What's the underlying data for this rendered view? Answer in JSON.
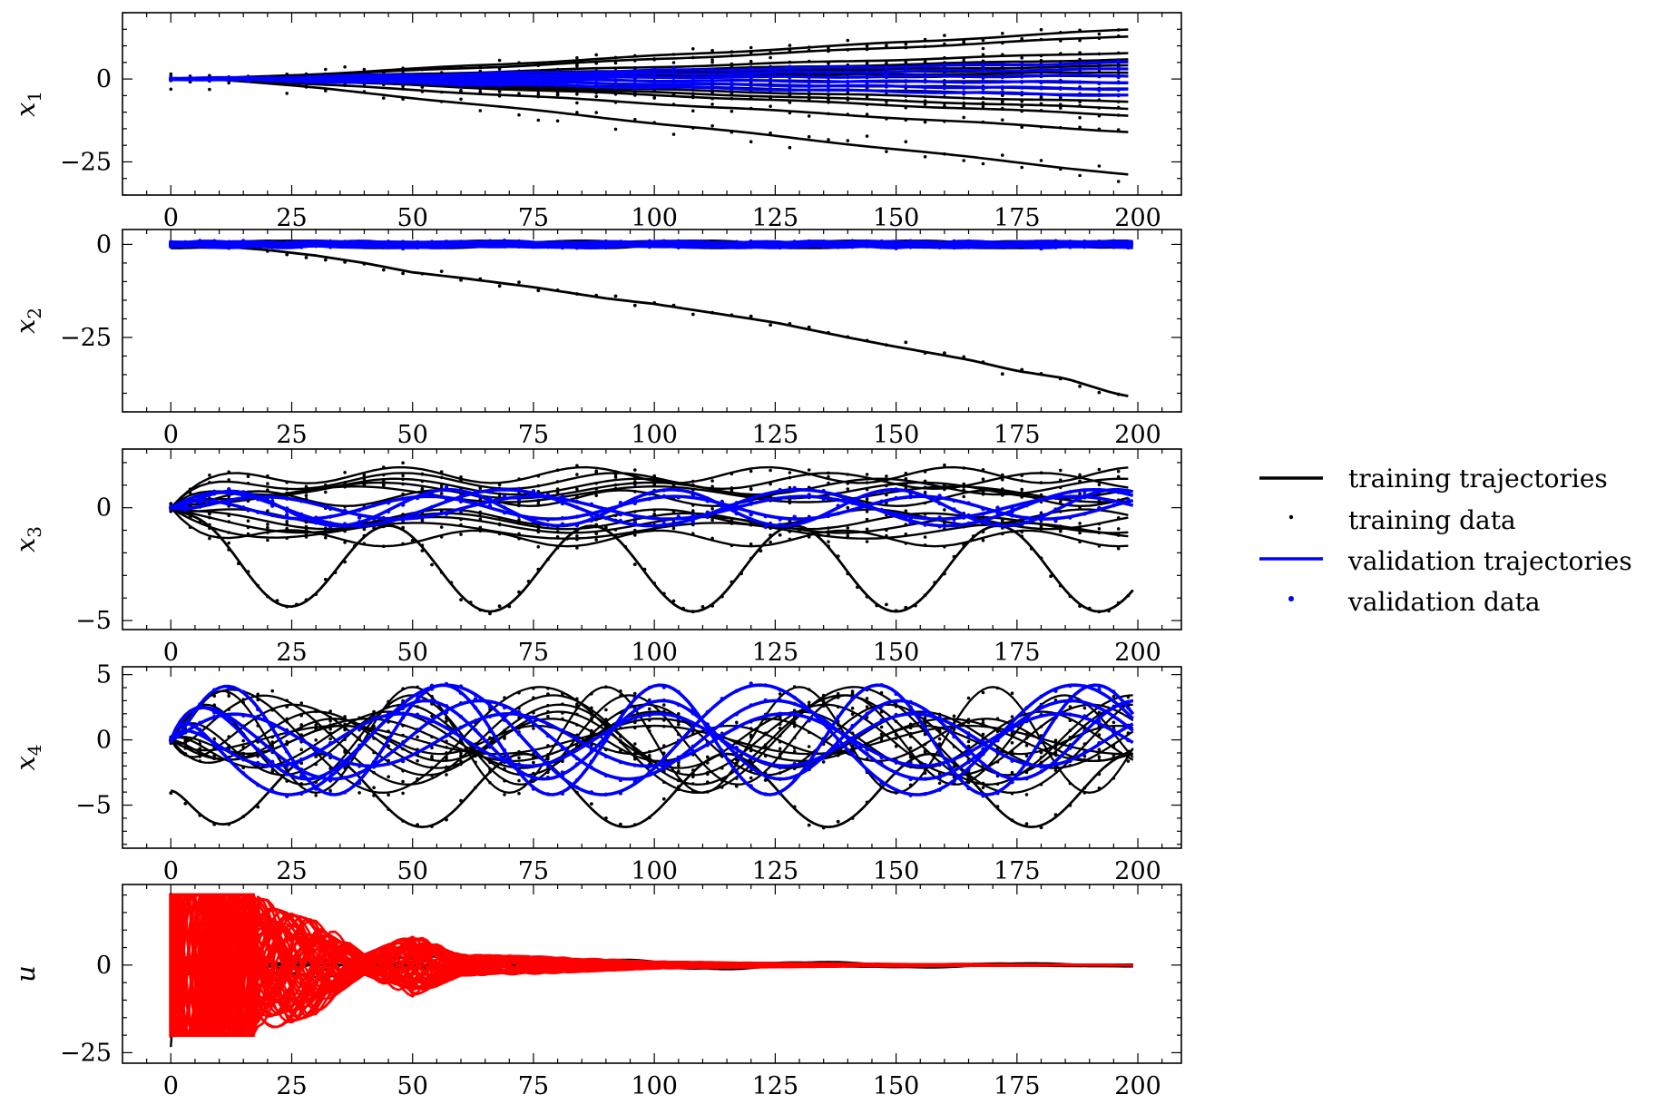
{
  "colors": {
    "training": "#000000",
    "validation": "#0000ff",
    "control": "#ff0000",
    "background": "#ffffff"
  },
  "legend": {
    "items": [
      {
        "label": "training trajectories",
        "kind": "line",
        "color": "#000000"
      },
      {
        "label": "training data",
        "kind": "dot",
        "color": "#000000"
      },
      {
        "label": "validation trajectories",
        "kind": "line",
        "color": "#0000ff"
      },
      {
        "label": "validation data",
        "kind": "dot",
        "color": "#0000ff"
      }
    ]
  },
  "chart_data": [
    {
      "type": "line",
      "ylabel": "x1",
      "ylabel_base": "x",
      "ylabel_sub": "1",
      "xlim": [
        -10,
        209
      ],
      "ylim": [
        -35,
        20
      ],
      "xticks": [
        0,
        25,
        50,
        75,
        100,
        125,
        150,
        175,
        200
      ],
      "yticks": [
        0,
        -25
      ],
      "yticklabels": [
        "0",
        "−25"
      ],
      "legend": "none",
      "series_summary": {
        "training_final_values": [
          15,
          13,
          8,
          6,
          5,
          4,
          3,
          2,
          1,
          -1,
          -3,
          -5,
          -7,
          -9,
          -11,
          -16,
          -29
        ],
        "training_shapes": [
          {
            "kind": "ramp",
            "start": 15,
            "end": 200,
            "final": 15
          },
          {
            "kind": "ramp",
            "start": 15,
            "end": 200,
            "final": 13
          },
          {
            "kind": "ramp",
            "start": 10,
            "end": 200,
            "final": -16
          },
          {
            "kind": "ramp",
            "start": 12,
            "end": 200,
            "final": -29
          }
        ],
        "validation_final_values": [
          5,
          3,
          1,
          -1,
          -3,
          -5
        ]
      }
    },
    {
      "type": "line",
      "ylabel": "x2",
      "ylabel_base": "x",
      "ylabel_sub": "2",
      "xlim": [
        -10,
        209
      ],
      "ylim": [
        -45,
        4
      ],
      "xticks": [
        0,
        25,
        50,
        75,
        100,
        125,
        150,
        175,
        200
      ],
      "yticks": [
        0,
        -25
      ],
      "yticklabels": [
        "0",
        "−25"
      ],
      "legend": "none",
      "series_summary": {
        "training_band": [
          -1,
          1
        ],
        "drift_trajectory": [
          [
            0,
            0
          ],
          [
            10,
            -0.5
          ],
          [
            20,
            -1.5
          ],
          [
            30,
            -3
          ],
          [
            40,
            -5
          ],
          [
            50,
            -7.5
          ],
          [
            60,
            -9
          ],
          [
            75,
            -11.5
          ],
          [
            90,
            -14.5
          ],
          [
            100,
            -16
          ],
          [
            110,
            -18
          ],
          [
            125,
            -21
          ],
          [
            140,
            -25
          ],
          [
            150,
            -27.5
          ],
          [
            165,
            -31
          ],
          [
            175,
            -34
          ],
          [
            185,
            -36
          ],
          [
            195,
            -40
          ],
          [
            199,
            -41
          ]
        ],
        "validation_band": [
          -1,
          1
        ]
      }
    },
    {
      "type": "line",
      "ylabel": "x3",
      "ylabel_base": "x",
      "ylabel_sub": "3",
      "xlim": [
        -10,
        209
      ],
      "ylim": [
        -5.4,
        2.6
      ],
      "xticks": [
        0,
        25,
        50,
        75,
        100,
        125,
        150,
        175,
        200
      ],
      "yticks": [
        0,
        -5
      ],
      "yticklabels": [
        "0",
        "−5"
      ],
      "legend": "none",
      "series_summary": {
        "training_oscillation_amplitudes": [
          1.7,
          1.4,
          1.1,
          0.9,
          0.7,
          0.5,
          -0.5,
          -0.7,
          -0.9,
          -1.2,
          -1.6
        ],
        "deep_trajectory_minima": [
          -4.8,
          -4.5,
          -3.5,
          -3.5,
          -3.8,
          -3.7,
          -3.8
        ],
        "validation_oscillation_amplitudes": [
          0.8,
          0.5,
          -0.5,
          -0.8
        ]
      }
    },
    {
      "type": "line",
      "ylabel": "x4",
      "ylabel_base": "x",
      "ylabel_sub": "4",
      "xlim": [
        -10,
        209
      ],
      "ylim": [
        -8.3,
        5.6
      ],
      "xticks": [
        0,
        25,
        50,
        75,
        100,
        125,
        150,
        175,
        200
      ],
      "yticks": [
        5,
        0,
        -5
      ],
      "yticklabels": [
        "5",
        "0",
        "−5"
      ],
      "legend": "none",
      "series_summary": {
        "training_oscillation_amplitudes": [
          4.5,
          3.8,
          3.0,
          2.4,
          1.8,
          1.2,
          -1.2,
          -1.8,
          -2.4,
          -3.0,
          -3.8,
          -4.5
        ],
        "deep_trajectory_minimum": -6.5,
        "validation_oscillation_amplitudes": [
          4.2,
          3.0,
          2.0,
          -2.0,
          -3.0,
          -4.2
        ]
      }
    },
    {
      "type": "line",
      "ylabel": "u",
      "ylabel_base": "u",
      "ylabel_sub": "",
      "xlim": [
        -10,
        209
      ],
      "ylim": [
        -28,
        23
      ],
      "xticks": [
        0,
        25,
        50,
        75,
        100,
        125,
        150,
        175,
        200
      ],
      "yticks": [
        0,
        -25
      ],
      "yticklabels": [
        "0",
        "−25"
      ],
      "legend": "none",
      "series_summary": {
        "control_saturation": [
          -20,
          20
        ],
        "control_saturation_until": 17,
        "control_envelope": [
          [
            0,
            20
          ],
          [
            17,
            20
          ],
          [
            30,
            14
          ],
          [
            40,
            3
          ],
          [
            50,
            9
          ],
          [
            60,
            3
          ],
          [
            75,
            2.5
          ],
          [
            100,
            1
          ],
          [
            125,
            0.6
          ],
          [
            150,
            0.3
          ],
          [
            200,
            0
          ]
        ],
        "training_min": -26
      }
    }
  ]
}
